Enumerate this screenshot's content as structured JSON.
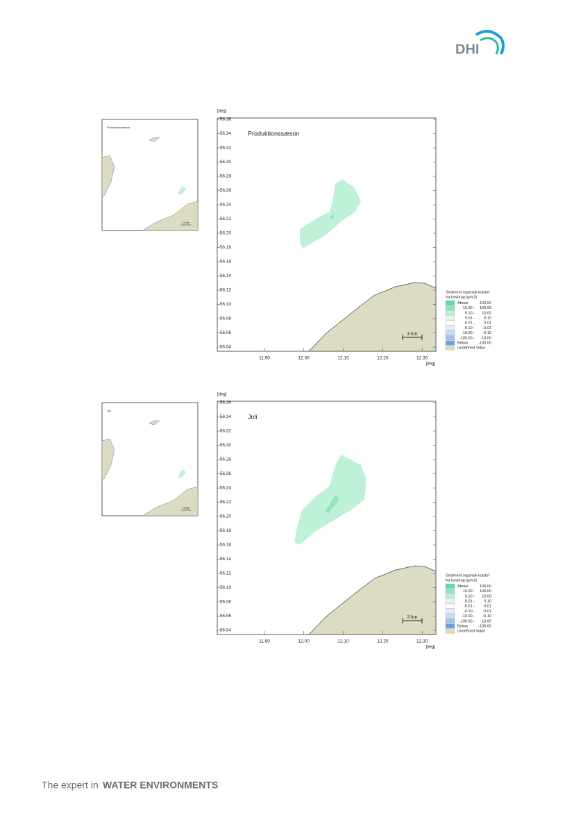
{
  "header": {
    "logo": "DHI"
  },
  "axis": {
    "y_unit": "[deg]",
    "x_unit": "[deg]",
    "yticks": [
      "56.36",
      "56.34",
      "56.32",
      "56.30",
      "56.28",
      "56.26",
      "56.24",
      "56.22",
      "56.20",
      "56.18",
      "56.16",
      "56.14",
      "56.12",
      "56.10",
      "56.08",
      "56.06",
      "56.04"
    ],
    "xticks": [
      "11.90",
      "12.00",
      "12.10",
      "12.20",
      "12.30"
    ],
    "scale": "3 km",
    "inset_scale": "10 km"
  },
  "legend": {
    "title": [
      "Sediment organisk kulstof",
      "fra havbrug (g/m2)"
    ],
    "rows": [
      {
        "label": "Above",
        "value": "100.00",
        "color": "#5fdaa4"
      },
      {
        "label": "10.00 -",
        "value": "100.00",
        "color": "#8fe6bd"
      },
      {
        "label": "0.10 -",
        "value": "10.00",
        "color": "#bff0d8"
      },
      {
        "label": "0.01 -",
        "value": "0.10",
        "color": "#e4f8ee"
      },
      {
        "label": "-0.01 -",
        "value": "0.01",
        "color": "#ffffff"
      },
      {
        "label": "-0.10 -",
        "value": "-0.01",
        "color": "#e4ecfa"
      },
      {
        "label": "-10.00 -",
        "value": "-0.10",
        "color": "#c8daf4"
      },
      {
        "label": "-100.00 -",
        "value": "-10.00",
        "color": "#a3c2ee"
      },
      {
        "label": "Below",
        "value": "-100.00",
        "color": "#6aa0e4"
      },
      {
        "label": "Undefined Value",
        "color": "#dcdbc3"
      }
    ]
  },
  "maps": [
    {
      "title": "Produktionssæson",
      "inset_label": "Produktionssæson"
    },
    {
      "title": "Juli",
      "inset_label": "Juli"
    }
  ],
  "footer": {
    "lead": "The expert in",
    "bold": "WATER ENVIRONMENTS"
  }
}
